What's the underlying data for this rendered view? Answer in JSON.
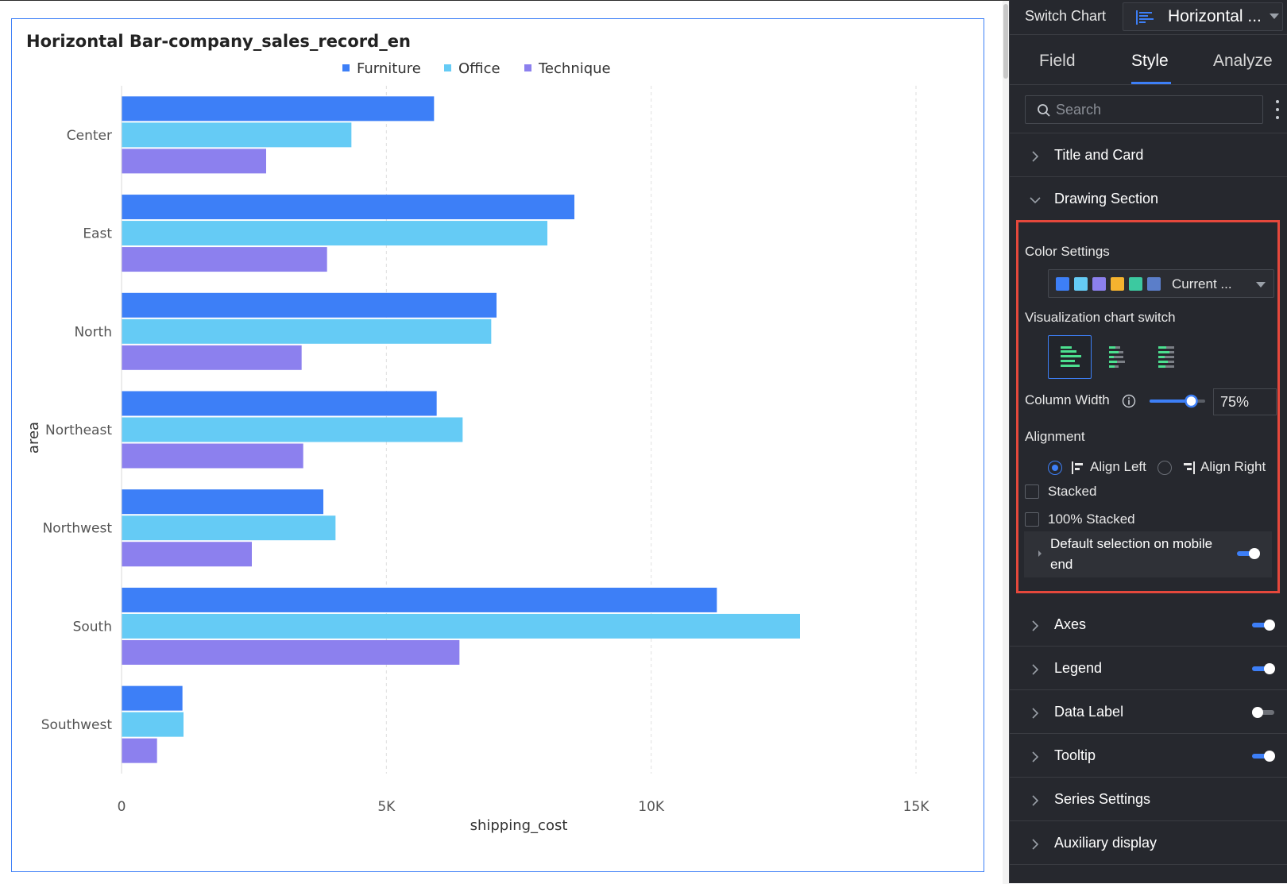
{
  "chart": {
    "title": "Horizontal Bar-company_sales_record_en"
  },
  "chart_data": {
    "type": "bar",
    "orientation": "horizontal",
    "title": "Horizontal Bar-company_sales_record_en",
    "xlabel": "shipping_cost",
    "ylabel": "area",
    "categories": [
      "Center",
      "East",
      "North",
      "Northeast",
      "Northwest",
      "South",
      "Southwest"
    ],
    "series": [
      {
        "name": "Furniture",
        "color": "#3d7ff7",
        "values": [
          5900,
          8550,
          7080,
          5950,
          3810,
          11240,
          1150
        ]
      },
      {
        "name": "Office",
        "color": "#65cbf5",
        "values": [
          4340,
          8040,
          6980,
          6440,
          4040,
          12810,
          1170
        ]
      },
      {
        "name": "Technique",
        "color": "#8c80ee",
        "values": [
          2730,
          3880,
          3400,
          3430,
          2460,
          6380,
          670
        ]
      }
    ],
    "xlim": [
      0,
      15000
    ],
    "xticks": [
      {
        "value": 0,
        "label": "0"
      },
      {
        "value": 5000,
        "label": "5K"
      },
      {
        "value": 10000,
        "label": "10K"
      },
      {
        "value": 15000,
        "label": "15K"
      }
    ],
    "grid": "vertical-dashed",
    "legend_position": "top-center"
  },
  "panel": {
    "switch_chart_label": "Switch Chart",
    "chart_type_value": "Horizontal ...",
    "tabs": [
      {
        "label": "Field",
        "active": false
      },
      {
        "label": "Style",
        "active": true
      },
      {
        "label": "Analyze",
        "active": false
      }
    ],
    "search": {
      "placeholder": "Search"
    },
    "sections_top": [
      {
        "label": "Title and Card",
        "expanded": false
      },
      {
        "label": "Drawing Section",
        "expanded": true
      }
    ],
    "drawing": {
      "color_settings_label": "Color Settings",
      "color_swatches": [
        "#3d7ff7",
        "#65cbf5",
        "#8c80ee",
        "#f5b32f",
        "#3cc9a0",
        "#5b7ec9"
      ],
      "color_value": "Current ...",
      "viz_switch_label": "Visualization chart switch",
      "column_width_label": "Column Width",
      "column_width_value": "75%",
      "column_width_level": 0.75,
      "alignment_label": "Alignment",
      "align_left_label": "Align Left",
      "align_right_label": "Align Right",
      "align_selected": "left",
      "stacked_label": "Stacked",
      "stacked_100_label": "100% Stacked",
      "mobile_default_label": "Default selection on mobile end",
      "mobile_default_on": true
    },
    "sections_bottom": [
      {
        "label": "Axes",
        "toggle": true
      },
      {
        "label": "Legend",
        "toggle": true
      },
      {
        "label": "Data Label",
        "toggle": false
      },
      {
        "label": "Tooltip",
        "toggle": true
      },
      {
        "label": "Series Settings",
        "toggle": null
      },
      {
        "label": "Auxiliary display",
        "toggle": null
      }
    ],
    "accent_color": "#3d7ff7",
    "highlight_color": "#e5483c"
  }
}
